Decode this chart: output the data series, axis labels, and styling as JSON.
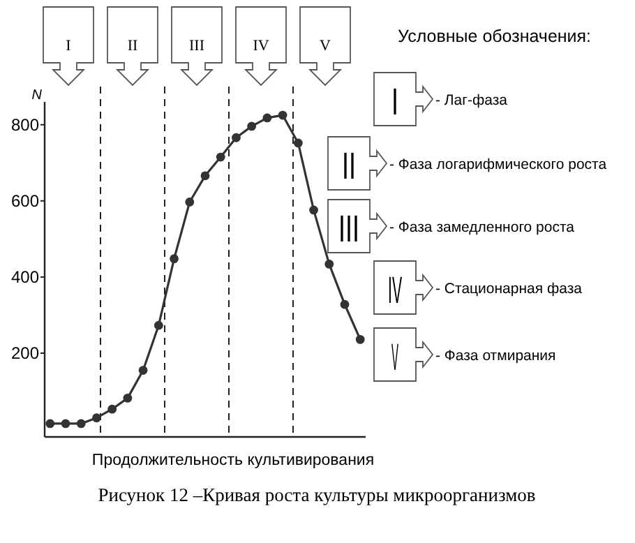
{
  "chart_data": {
    "type": "line",
    "title": "Рисунок 12 –Кривая роста культуры микроорганизмов",
    "xlabel": "Продолжительность культивирования",
    "ylabel": "N",
    "legend_title": "Условные обозначения:",
    "categories": [
      null,
      null,
      null,
      null,
      null,
      null,
      null,
      null,
      null,
      null,
      null,
      null,
      null,
      null,
      null,
      null,
      null,
      null,
      null,
      null,
      null
    ],
    "series": [
      {
        "color": "#333333",
        "values": [
          15,
          15,
          15,
          30,
          53,
          82,
          155,
          273,
          448,
          597,
          666,
          715,
          766,
          796,
          818,
          825,
          752,
          576,
          434,
          328,
          236
        ]
      }
    ],
    "ylim": [
      -20,
      860
    ],
    "yticks": [
      200,
      400,
      600,
      800
    ],
    "tick_labels": "y",
    "marker": "circle",
    "line_style": "solid",
    "grid": false,
    "annotations": [
      "I",
      "II",
      "III",
      "IV",
      "V",
      "- Лаг-фаза",
      "- Фаза логарифмического роста",
      "- Фаза замедленного роста",
      "- Стационарная фаза",
      "- Фаза отмирания"
    ]
  }
}
